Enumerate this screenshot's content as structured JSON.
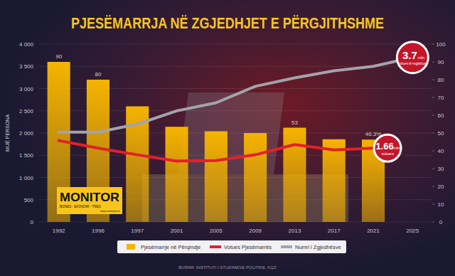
{
  "chart_data": {
    "type": "bar",
    "title": "PJESËMARRJA NË ZGJEDHJET E PËRGJITHSHME",
    "y_label": "MIJË PERSONA",
    "categories": [
      "1992",
      "1996",
      "1997",
      "2001",
      "2005",
      "2009",
      "2013",
      "2017",
      "2021",
      "2025"
    ],
    "series": [
      {
        "name": "Pjesëmarrje në Përqindje",
        "type": "bar",
        "axis": "y2",
        "color": "#f5b400",
        "values": [
          90,
          80,
          65,
          53.5,
          51,
          50,
          53,
          46.5,
          46.3,
          null
        ],
        "value_labels": [
          "90",
          "80",
          null,
          null,
          null,
          null,
          "53",
          null,
          "46.3%",
          null
        ]
      },
      {
        "name": "Votues Pjesëmarrës",
        "type": "line",
        "color": "#e3202b",
        "values": [
          1830,
          1660,
          1510,
          1370,
          1380,
          1510,
          1740,
          1620,
          1660,
          null
        ]
      },
      {
        "name": "Numri i Zgjedhësve",
        "type": "line",
        "color": "#a3a3ab",
        "values": [
          2020,
          2020,
          2200,
          2500,
          2680,
          3050,
          3240,
          3400,
          3500,
          3700
        ]
      }
    ],
    "ylim": [
      0,
      4000
    ],
    "yticks": [
      0,
      500,
      {
        "value": 1000,
        "label": "1 000"
      },
      {
        "value": 1500,
        "label": "1 500"
      },
      {
        "value": 2000,
        "label": "2 000"
      },
      {
        "value": 2500,
        "label": "2 500"
      },
      {
        "value": 3000,
        "label": "3 000"
      },
      {
        "value": 3500,
        "label": "3 500"
      },
      {
        "value": 4000,
        "label": "4 000"
      }
    ],
    "y2lim": [
      0,
      100
    ],
    "y2ticks": [
      0,
      10,
      20,
      30,
      40,
      50,
      60,
      70,
      80,
      90,
      100
    ],
    "grid": true,
    "legend": "bottom",
    "data_labels": true,
    "annotations": [
      {
        "text": "3.7",
        "unit": "mln",
        "caption": "votues të regjistruar",
        "series": 2,
        "category": "2025"
      },
      {
        "text": "1.66",
        "unit": "mln",
        "caption": "votues",
        "series": 1,
        "category": "2021"
      }
    ],
    "logo": {
      "name": "MONITOR",
      "tagline": "BIZNES - EKONOMI - TREG",
      "url": "www.monitor.al"
    },
    "source": "BURIMI: INSTITUTI I STUDIMEVE POLITIKE, KQZ"
  }
}
